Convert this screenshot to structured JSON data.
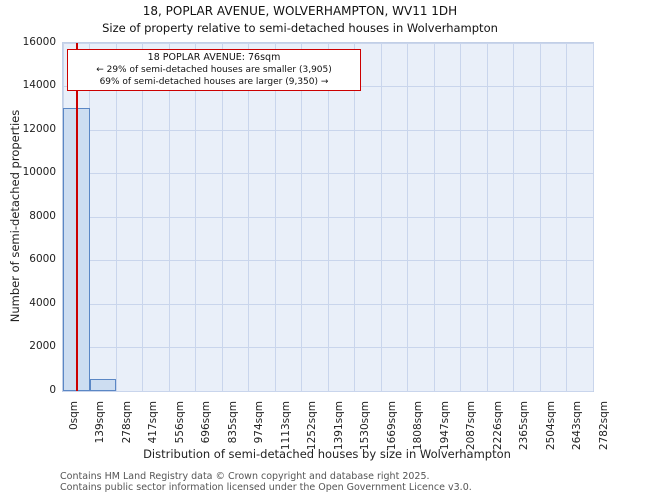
{
  "title": {
    "line1": "18, POPLAR AVENUE, WOLVERHAMPTON, WV11 1DH",
    "line2": "Size of property relative to semi-detached houses in Wolverhampton"
  },
  "chart_data": {
    "type": "bar",
    "title": "18, POPLAR AVENUE, WOLVERHAMPTON, WV11 1DH",
    "subtitle": "Size of property relative to semi-detached houses in Wolverhampton",
    "xlabel": "Distribution of semi-detached houses by size in Wolverhampton",
    "ylabel": "Number of semi-detached properties",
    "categories": [
      "0sqm",
      "139sqm",
      "278sqm",
      "417sqm",
      "556sqm",
      "696sqm",
      "835sqm",
      "974sqm",
      "1113sqm",
      "1252sqm",
      "1391sqm",
      "1530sqm",
      "1669sqm",
      "1808sqm",
      "1947sqm",
      "2087sqm",
      "2226sqm",
      "2365sqm",
      "2504sqm",
      "2643sqm",
      "2782sqm"
    ],
    "values": [
      13000,
      550,
      0,
      0,
      0,
      0,
      0,
      0,
      0,
      0,
      0,
      0,
      0,
      0,
      0,
      0,
      0,
      0,
      0,
      0
    ],
    "ylim": [
      0,
      16000
    ],
    "yticks": [
      0,
      2000,
      4000,
      6000,
      8000,
      10000,
      12000,
      14000,
      16000
    ],
    "grid": true,
    "marker": {
      "sqm": 76,
      "x_axis_max_sqm": 2782
    },
    "annotation": {
      "line1": "18 POPLAR AVENUE: 76sqm",
      "line2": "← 29% of semi-detached houses are smaller (3,905)",
      "line3": "69% of semi-detached houses are larger (9,350) →"
    },
    "colors": {
      "bar_fill": "#cdddf1",
      "bar_edge": "#5b87c5",
      "grid": "#c9d5ec",
      "plot_bg": "#e9eff9",
      "marker": "#cc0000",
      "annotation_border": "#cc0000"
    }
  },
  "footer": {
    "line1": "Contains HM Land Registry data © Crown copyright and database right 2025.",
    "line2": "Contains public sector information licensed under the Open Government Licence v3.0."
  }
}
